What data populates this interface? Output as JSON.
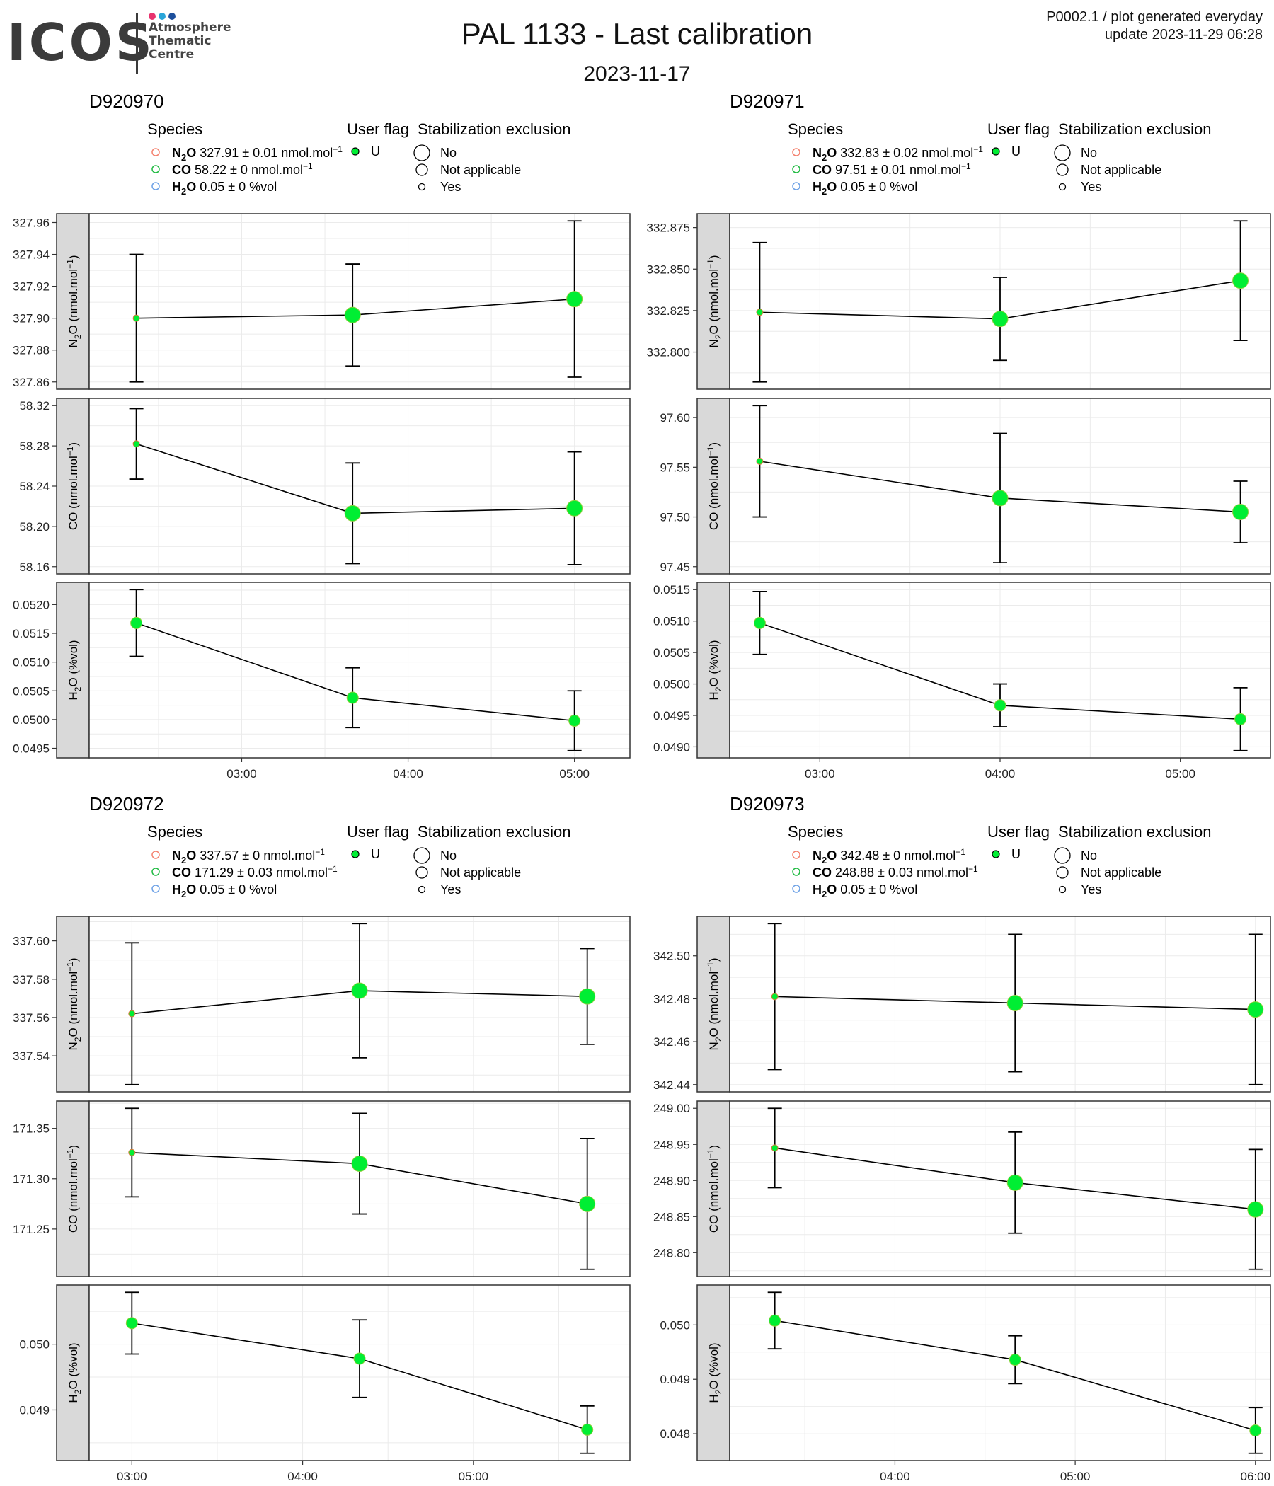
{
  "header": {
    "logo_word": "ICOS",
    "logo_sub": [
      "Atmosphere",
      "Thematic",
      "Centre"
    ],
    "logo_dot_colors": [
      "#e8336e",
      "#2aa5d9",
      "#1d4f9c"
    ],
    "title": "PAL 1133 - Last calibration",
    "date": "2023-11-17",
    "meta_line1": "P0002.1 / plot generated everyday",
    "meta_line2": "update  2023-11-29 06:28"
  },
  "legend": {
    "species_title": "Species",
    "flag_title": "User flag",
    "stab_title": "Stabilization exclusion",
    "flag_value": "U",
    "stab_values": [
      "No",
      "Not applicable",
      "Yes"
    ],
    "species_colors": [
      "#f4826f",
      "#22bb44",
      "#6ea2e6"
    ]
  },
  "colors": {
    "point": "#00ee33",
    "line": "#000000",
    "panel_border": "#333333",
    "strip_bg": "#d9d9d9",
    "grid": "#ebebeb"
  },
  "chart_data": [
    {
      "type": "scatter",
      "cylinder": "D920970",
      "species_legend": [
        {
          "name": "N2O",
          "text": "327.91 ± 0.01 nmol.mol",
          "unit_exp": "−1"
        },
        {
          "name": "CO",
          "text": "58.22 ± 0 nmol.mol",
          "unit_exp": "−1"
        },
        {
          "name": "H2O",
          "text": "0.05 ± 0 %vol",
          "unit_exp": ""
        }
      ],
      "x_ticks": [
        "03:00",
        "04:00",
        "05:00"
      ],
      "panels": [
        {
          "ylabel": "N2O (nmol.mol−1)",
          "yticks": [
            "327.86",
            "327.88",
            "327.90",
            "327.92",
            "327.94",
            "327.96"
          ],
          "points": [
            {
              "x": "02:22",
              "y": 327.9,
              "err": 0.04,
              "size": "Yes"
            },
            {
              "x": "03:40",
              "y": 327.902,
              "err": 0.032,
              "size": "No"
            },
            {
              "x": "05:00",
              "y": 327.912,
              "err": 0.049,
              "size": "No"
            }
          ]
        },
        {
          "ylabel": "CO (nmol.mol−1)",
          "yticks": [
            "58.16",
            "58.20",
            "58.24",
            "58.28",
            "58.32"
          ],
          "points": [
            {
              "x": "02:22",
              "y": 58.282,
              "err": 0.035,
              "size": "Yes"
            },
            {
              "x": "03:40",
              "y": 58.213,
              "err": 0.05,
              "size": "No"
            },
            {
              "x": "05:00",
              "y": 58.218,
              "err": 0.056,
              "size": "No"
            }
          ]
        },
        {
          "ylabel": "H2O (%vol)",
          "yticks": [
            "0.0495",
            "0.0500",
            "0.0505",
            "0.0510",
            "0.0515",
            "0.0520"
          ],
          "points": [
            {
              "x": "02:22",
              "y": 0.05168,
              "err": 0.00058,
              "size": "Not applicable"
            },
            {
              "x": "03:40",
              "y": 0.05038,
              "err": 0.00052,
              "size": "Not applicable"
            },
            {
              "x": "05:00",
              "y": 0.04998,
              "err": 0.00052,
              "size": "Not applicable"
            }
          ]
        }
      ]
    },
    {
      "type": "scatter",
      "cylinder": "D920971",
      "species_legend": [
        {
          "name": "N2O",
          "text": "332.83 ± 0.02 nmol.mol",
          "unit_exp": "−1"
        },
        {
          "name": "CO",
          "text": "97.51 ± 0.01 nmol.mol",
          "unit_exp": "−1"
        },
        {
          "name": "H2O",
          "text": "0.05 ± 0 %vol",
          "unit_exp": ""
        }
      ],
      "x_ticks": [
        "03:00",
        "04:00",
        "05:00"
      ],
      "panels": [
        {
          "ylabel": "N2O (nmol.mol−1)",
          "yticks": [
            "332.800",
            "332.825",
            "332.850",
            "332.875"
          ],
          "points": [
            {
              "x": "02:40",
              "y": 332.824,
              "err": 0.042,
              "size": "Yes"
            },
            {
              "x": "04:00",
              "y": 332.82,
              "err": 0.025,
              "size": "No"
            },
            {
              "x": "05:20",
              "y": 332.843,
              "err": 0.036,
              "size": "No"
            }
          ]
        },
        {
          "ylabel": "CO (nmol.mol−1)",
          "yticks": [
            "97.45",
            "97.50",
            "97.55",
            "97.60"
          ],
          "points": [
            {
              "x": "02:40",
              "y": 97.556,
              "err": 0.056,
              "size": "Yes"
            },
            {
              "x": "04:00",
              "y": 97.519,
              "err": 0.065,
              "size": "No"
            },
            {
              "x": "05:20",
              "y": 97.505,
              "err": 0.031,
              "size": "No"
            }
          ]
        },
        {
          "ylabel": "H2O (%vol)",
          "yticks": [
            "0.0490",
            "0.0495",
            "0.0500",
            "0.0505",
            "0.0510",
            "0.0515"
          ],
          "points": [
            {
              "x": "02:40",
              "y": 0.05097,
              "err": 0.0005,
              "size": "Not applicable"
            },
            {
              "x": "04:00",
              "y": 0.04966,
              "err": 0.00034,
              "size": "Not applicable"
            },
            {
              "x": "05:20",
              "y": 0.04944,
              "err": 0.0005,
              "size": "Not applicable"
            }
          ]
        }
      ]
    },
    {
      "type": "scatter",
      "cylinder": "D920972",
      "species_legend": [
        {
          "name": "N2O",
          "text": "337.57 ± 0 nmol.mol",
          "unit_exp": "−1"
        },
        {
          "name": "CO",
          "text": "171.29 ± 0.03 nmol.mol",
          "unit_exp": "−1"
        },
        {
          "name": "H2O",
          "text": "0.05 ± 0 %vol",
          "unit_exp": ""
        }
      ],
      "x_ticks": [
        "03:00",
        "04:00",
        "05:00"
      ],
      "panels": [
        {
          "ylabel": "N2O (nmol.mol−1)",
          "yticks": [
            "337.54",
            "337.56",
            "337.58",
            "337.60"
          ],
          "points": [
            {
              "x": "03:00",
              "y": 337.562,
              "err": 0.037,
              "size": "Yes"
            },
            {
              "x": "04:20",
              "y": 337.574,
              "err": 0.035,
              "size": "No"
            },
            {
              "x": "05:40",
              "y": 337.571,
              "err": 0.025,
              "size": "No"
            }
          ]
        },
        {
          "ylabel": "CO (nmol.mol−1)",
          "yticks": [
            "171.25",
            "171.30",
            "171.35"
          ],
          "points": [
            {
              "x": "03:00",
              "y": 171.326,
              "err": 0.044,
              "size": "Yes"
            },
            {
              "x": "04:20",
              "y": 171.315,
              "err": 0.05,
              "size": "No"
            },
            {
              "x": "05:40",
              "y": 171.275,
              "err": 0.065,
              "size": "No"
            }
          ]
        },
        {
          "ylabel": "H2O (%vol)",
          "yticks": [
            "0.049",
            "0.050"
          ],
          "points": [
            {
              "x": "03:00",
              "y": 0.05032,
              "err": 0.00047,
              "size": "Not applicable"
            },
            {
              "x": "04:20",
              "y": 0.04978,
              "err": 0.00059,
              "size": "Not applicable"
            },
            {
              "x": "05:40",
              "y": 0.0487,
              "err": 0.00036,
              "size": "Not applicable"
            }
          ]
        }
      ]
    },
    {
      "type": "scatter",
      "cylinder": "D920973",
      "species_legend": [
        {
          "name": "N2O",
          "text": "342.48 ± 0 nmol.mol",
          "unit_exp": "−1"
        },
        {
          "name": "CO",
          "text": "248.88 ± 0.03 nmol.mol",
          "unit_exp": "−1"
        },
        {
          "name": "H2O",
          "text": "0.05 ± 0 %vol",
          "unit_exp": ""
        }
      ],
      "x_ticks": [
        "04:00",
        "05:00",
        "06:00"
      ],
      "panels": [
        {
          "ylabel": "N2O (nmol.mol−1)",
          "yticks": [
            "342.44",
            "342.46",
            "342.48",
            "342.50"
          ],
          "points": [
            {
              "x": "03:20",
              "y": 342.481,
              "err": 0.034,
              "size": "Yes"
            },
            {
              "x": "04:40",
              "y": 342.478,
              "err": 0.032,
              "size": "No"
            },
            {
              "x": "06:00",
              "y": 342.475,
              "err": 0.035,
              "size": "No"
            }
          ]
        },
        {
          "ylabel": "CO (nmol.mol−1)",
          "yticks": [
            "248.80",
            "248.85",
            "248.90",
            "248.95",
            "249.00"
          ],
          "points": [
            {
              "x": "03:20",
              "y": 248.945,
              "err": 0.055,
              "size": "Yes"
            },
            {
              "x": "04:40",
              "y": 248.897,
              "err": 0.07,
              "size": "No"
            },
            {
              "x": "06:00",
              "y": 248.86,
              "err": 0.083,
              "size": "No"
            }
          ]
        },
        {
          "ylabel": "H2O (%vol)",
          "yticks": [
            "0.048",
            "0.049",
            "0.050"
          ],
          "points": [
            {
              "x": "03:20",
              "y": 0.05008,
              "err": 0.00052,
              "size": "Not applicable"
            },
            {
              "x": "04:40",
              "y": 0.04936,
              "err": 0.00044,
              "size": "Not applicable"
            },
            {
              "x": "06:00",
              "y": 0.04806,
              "err": 0.00042,
              "size": "Not applicable"
            }
          ]
        }
      ]
    }
  ]
}
